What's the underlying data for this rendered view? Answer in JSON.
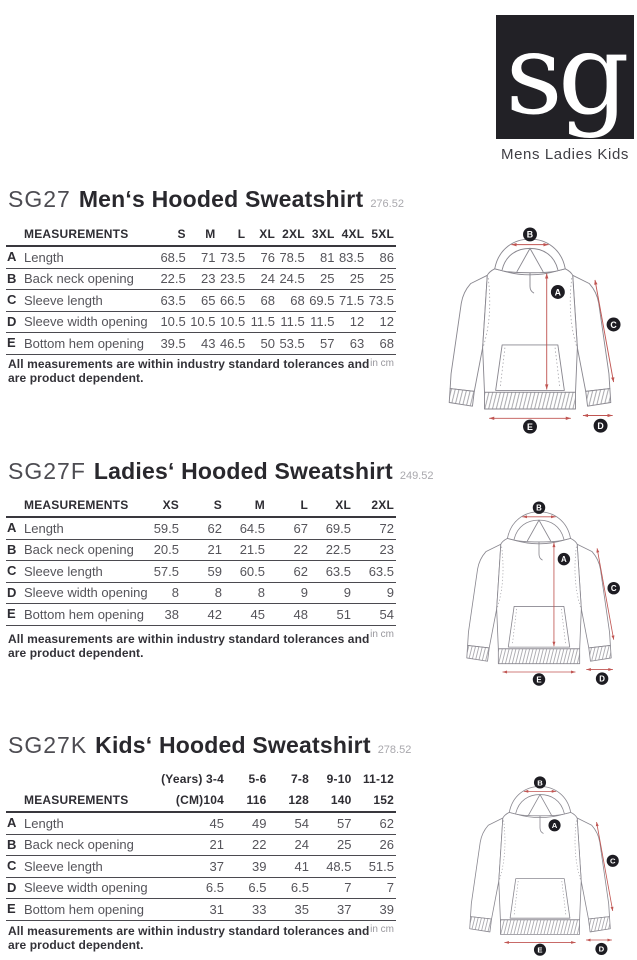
{
  "logo": {
    "monogram": "sg",
    "tagline": "Mens Ladies Kids"
  },
  "note_lines": [
    "All measurements are within industry standard tolerances and",
    "are product dependent."
  ],
  "sections": [
    {
      "code": "SG27",
      "name": "Men‘s Hooded Sweatshirt",
      "ref": "276.52",
      "measurements_label": "MEASUREMENTS",
      "unit_label": "in cm",
      "columns": [
        "S",
        "M",
        "L",
        "XL",
        "2XL",
        "3XL",
        "4XL",
        "5XL"
      ],
      "rows": [
        {
          "key": "A",
          "label": "Length",
          "values": [
            "68.5",
            "71",
            "73.5",
            "76",
            "78.5",
            "81",
            "83.5",
            "86"
          ]
        },
        {
          "key": "B",
          "label": "Back neck opening",
          "values": [
            "22.5",
            "23",
            "23.5",
            "24",
            "24.5",
            "25",
            "25",
            "25"
          ]
        },
        {
          "key": "C",
          "label": "Sleeve length",
          "values": [
            "63.5",
            "65",
            "66.5",
            "68",
            "68",
            "69.5",
            "71.5",
            "73.5"
          ]
        },
        {
          "key": "D",
          "label": "Sleeve width opening",
          "values": [
            "10.5",
            "10.5",
            "10.5",
            "11.5",
            "11.5",
            "11.5",
            "12",
            "12"
          ]
        },
        {
          "key": "E",
          "label": "Bottom hem opening",
          "values": [
            "39.5",
            "43",
            "46.5",
            "50",
            "53.5",
            "57",
            "63",
            "68"
          ]
        }
      ],
      "diagram_labels": [
        "A",
        "B",
        "C",
        "D",
        "E"
      ]
    },
    {
      "code": "SG27F",
      "name": "Ladies‘ Hooded Sweatshirt",
      "ref": "249.52",
      "measurements_label": "MEASUREMENTS",
      "unit_label": "in cm",
      "columns": [
        "XS",
        "S",
        "M",
        "L",
        "XL",
        "2XL"
      ],
      "rows": [
        {
          "key": "A",
          "label": "Length",
          "values": [
            "59.5",
            "62",
            "64.5",
            "67",
            "69.5",
            "72"
          ]
        },
        {
          "key": "B",
          "label": "Back neck opening",
          "values": [
            "20.5",
            "21",
            "21.5",
            "22",
            "22.5",
            "23"
          ]
        },
        {
          "key": "C",
          "label": "Sleeve length",
          "values": [
            "57.5",
            "59",
            "60.5",
            "62",
            "63.5",
            "63.5"
          ]
        },
        {
          "key": "D",
          "label": "Sleeve width opening",
          "values": [
            "8",
            "8",
            "8",
            "9",
            "9",
            "9"
          ]
        },
        {
          "key": "E",
          "label": "Bottom hem opening",
          "values": [
            "38",
            "42",
            "45",
            "48",
            "51",
            "54"
          ]
        }
      ],
      "diagram_labels": [
        "A",
        "B",
        "C",
        "D",
        "E"
      ]
    },
    {
      "code": "SG27K",
      "name": "Kids‘ Hooded Sweatshirt",
      "ref": "278.52",
      "measurements_label": "MEASUREMENTS",
      "unit_label": "in cm",
      "header_top": [
        "(Years) 3-4",
        "5-6",
        "7-8",
        "9-10",
        "11-12"
      ],
      "columns": [
        "(CM)104",
        "116",
        "128",
        "140",
        "152"
      ],
      "rows": [
        {
          "key": "A",
          "label": "Length",
          "values": [
            "45",
            "49",
            "54",
            "57",
            "62"
          ]
        },
        {
          "key": "B",
          "label": "Back neck opening",
          "values": [
            "21",
            "22",
            "24",
            "25",
            "26"
          ]
        },
        {
          "key": "C",
          "label": "Sleeve length",
          "values": [
            "37",
            "39",
            "41",
            "48.5",
            "51.5"
          ]
        },
        {
          "key": "D",
          "label": "Sleeve width opening",
          "values": [
            "6.5",
            "6.5",
            "6.5",
            "7",
            "7"
          ]
        },
        {
          "key": "E",
          "label": "Bottom hem opening",
          "values": [
            "31",
            "33",
            "35",
            "37",
            "39"
          ]
        }
      ],
      "diagram_labels": [
        "A",
        "B",
        "C",
        "D",
        "E"
      ]
    }
  ],
  "colors": {
    "accent_arrow": "#c05552",
    "label_dot": "#1d1c22",
    "logo_bg": "#222126",
    "ink": "#2e2d33"
  }
}
